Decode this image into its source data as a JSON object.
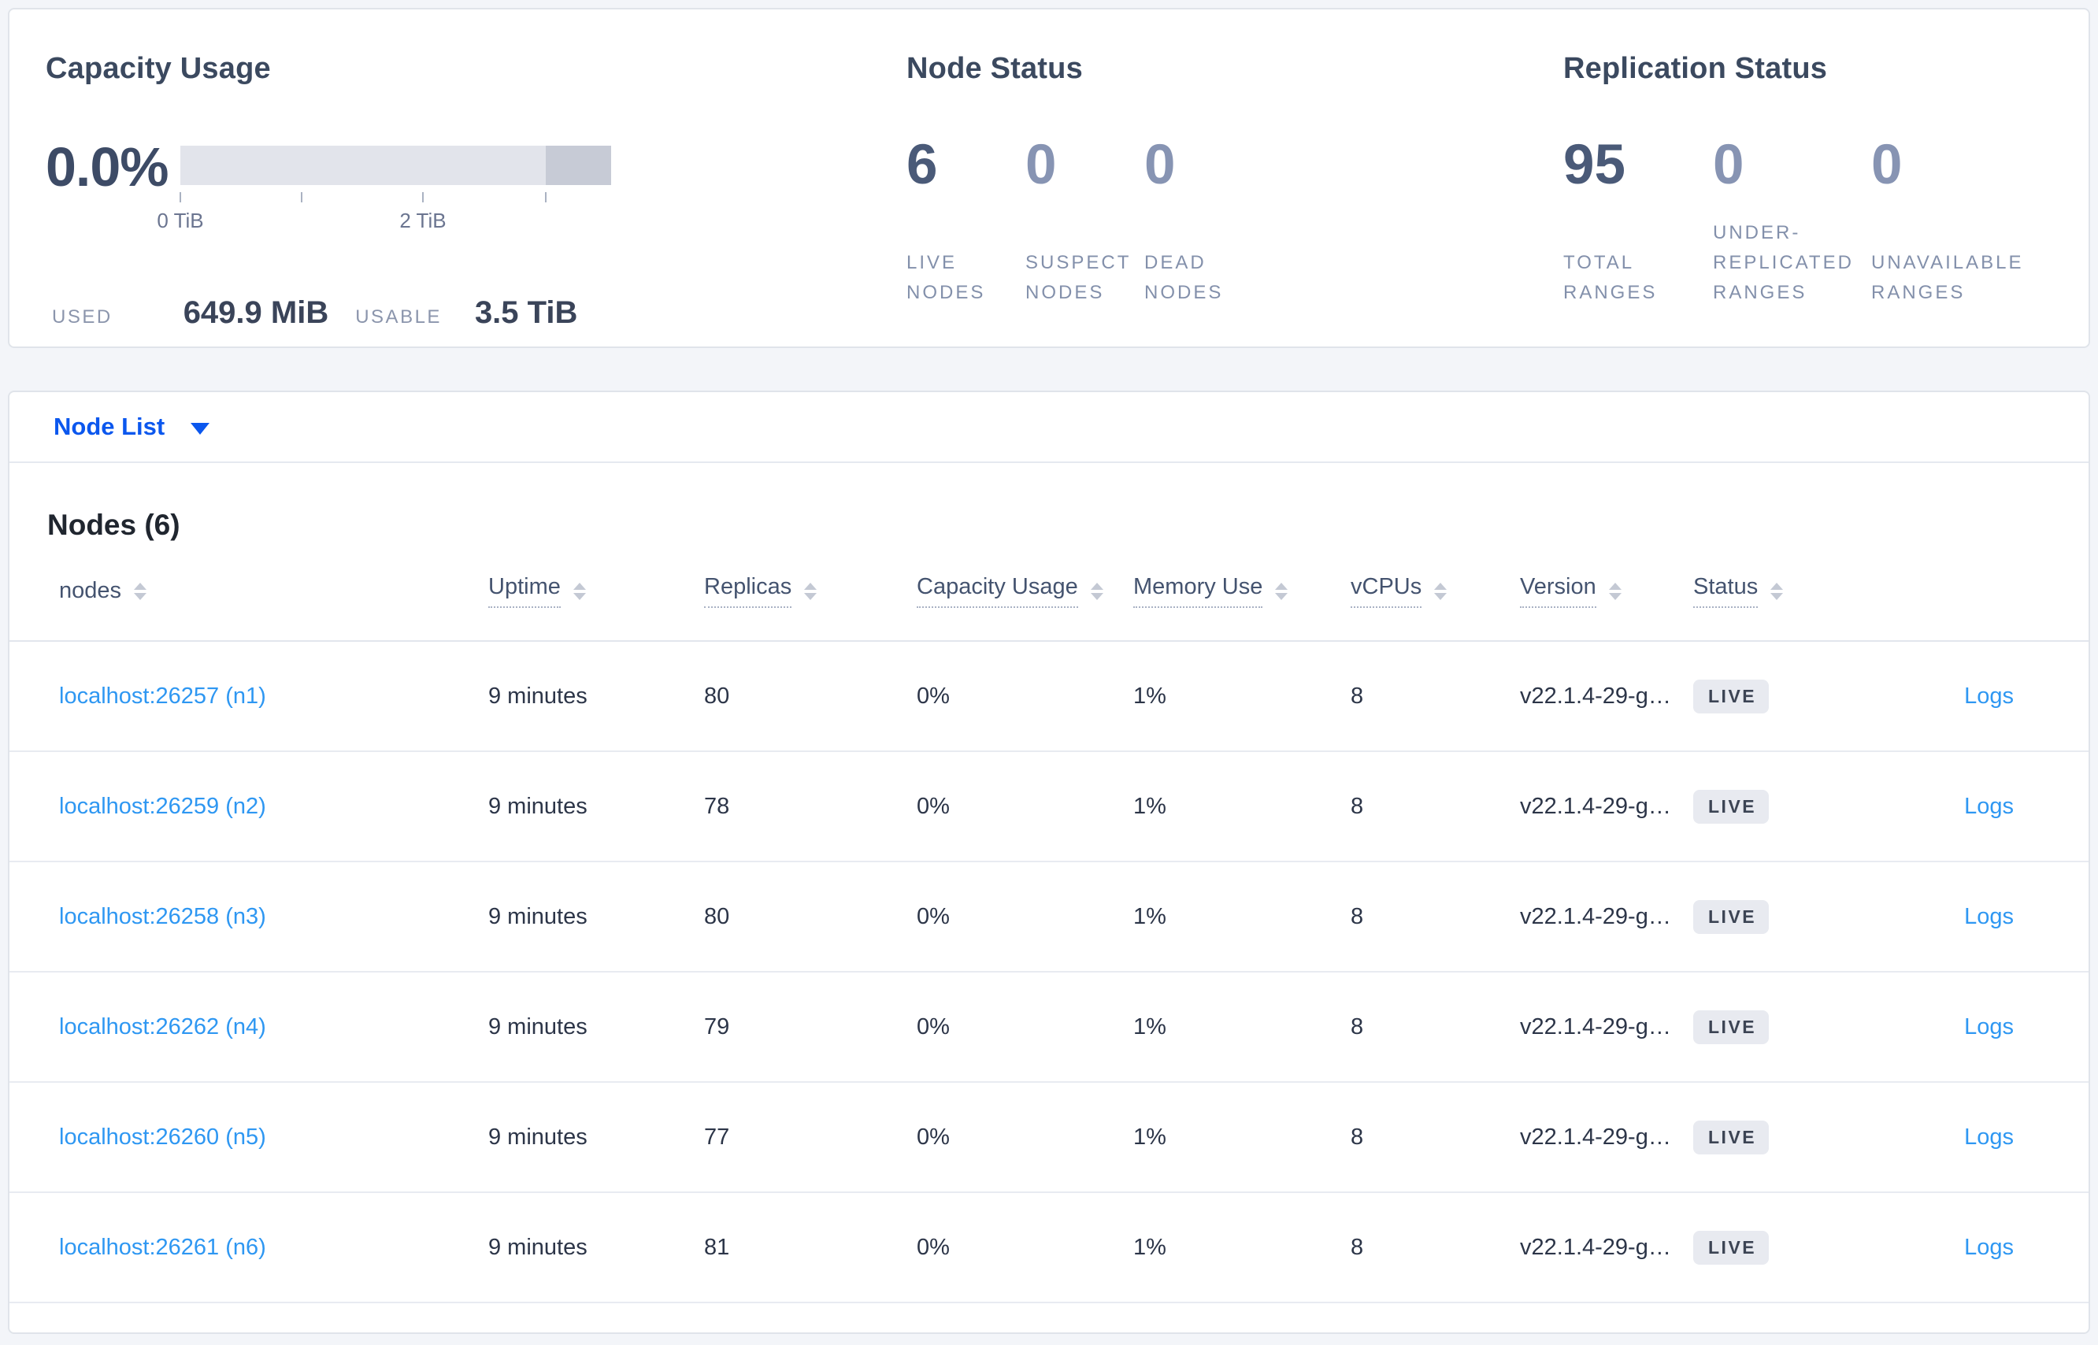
{
  "colors": {
    "page_bg": "#f3f5f9",
    "card_bg": "#ffffff",
    "card_border": "#e0e4ea",
    "section_title": "#3b495f",
    "big_number": "#4a5a78",
    "big_number_muted": "#8794b3",
    "metric_label": "#8390ab",
    "selector_blue": "#0b57ee",
    "table_link_blue": "#2e97f2",
    "cell_text": "#2c3548",
    "badge_bg": "#e8eaf0",
    "bar_track": "#e2e4eb",
    "bar_segment": "#c7cbd6"
  },
  "summary": {
    "capacity": {
      "title": "Capacity Usage",
      "percent": "0.0%",
      "bar": {
        "segment_width_pct": 15.2
      },
      "ticks": [
        {
          "pos_pct": 0,
          "label": "0 TiB"
        },
        {
          "pos_pct": 28.1,
          "label": ""
        },
        {
          "pos_pct": 56.3,
          "label": "2 TiB"
        },
        {
          "pos_pct": 84.8,
          "label": ""
        }
      ],
      "used_label": "USED",
      "used_value": "649.9 MiB",
      "usable_label": "USABLE",
      "usable_value": "3.5 TiB"
    },
    "node_status": {
      "title": "Node Status",
      "metrics": [
        {
          "value": "6",
          "label": "LIVE NODES",
          "muted": false
        },
        {
          "value": "0",
          "label": "SUSPECT NODES",
          "muted": true
        },
        {
          "value": "0",
          "label": "DEAD NODES",
          "muted": true
        }
      ]
    },
    "replication": {
      "title": "Replication Status",
      "metrics": [
        {
          "value": "95",
          "label": "TOTAL RANGES",
          "muted": false
        },
        {
          "value": "0",
          "label": "UNDER-REPLICATED RANGES",
          "muted": true
        },
        {
          "value": "0",
          "label": "UNAVAILABLE RANGES",
          "muted": true
        }
      ]
    }
  },
  "view_selector": {
    "label": "Node List"
  },
  "nodes_section": {
    "title": "Nodes (6)",
    "columns": [
      {
        "key": "nodes",
        "label": "nodes",
        "tooltip_underline": false
      },
      {
        "key": "uptime",
        "label": "Uptime",
        "tooltip_underline": true
      },
      {
        "key": "replicas",
        "label": "Replicas",
        "tooltip_underline": true
      },
      {
        "key": "capacity-usage",
        "label": "Capacity Usage",
        "tooltip_underline": true
      },
      {
        "key": "memory-use",
        "label": "Memory Use",
        "tooltip_underline": true
      },
      {
        "key": "vcpus",
        "label": "vCPUs",
        "tooltip_underline": true
      },
      {
        "key": "version",
        "label": "Version",
        "tooltip_underline": true
      },
      {
        "key": "status",
        "label": "Status",
        "tooltip_underline": true
      }
    ],
    "logs_label": "Logs",
    "rows": [
      {
        "address": "localhost:26257 (n1)",
        "uptime": "9 minutes",
        "replicas": "80",
        "capacity_usage": "0%",
        "memory_use": "1%",
        "vcpus": "8",
        "version": "v22.1.4-29-g…",
        "status": "LIVE"
      },
      {
        "address": "localhost:26259 (n2)",
        "uptime": "9 minutes",
        "replicas": "78",
        "capacity_usage": "0%",
        "memory_use": "1%",
        "vcpus": "8",
        "version": "v22.1.4-29-g…",
        "status": "LIVE"
      },
      {
        "address": "localhost:26258 (n3)",
        "uptime": "9 minutes",
        "replicas": "80",
        "capacity_usage": "0%",
        "memory_use": "1%",
        "vcpus": "8",
        "version": "v22.1.4-29-g…",
        "status": "LIVE"
      },
      {
        "address": "localhost:26262 (n4)",
        "uptime": "9 minutes",
        "replicas": "79",
        "capacity_usage": "0%",
        "memory_use": "1%",
        "vcpus": "8",
        "version": "v22.1.4-29-g…",
        "status": "LIVE"
      },
      {
        "address": "localhost:26260 (n5)",
        "uptime": "9 minutes",
        "replicas": "77",
        "capacity_usage": "0%",
        "memory_use": "1%",
        "vcpus": "8",
        "version": "v22.1.4-29-g…",
        "status": "LIVE"
      },
      {
        "address": "localhost:26261 (n6)",
        "uptime": "9 minutes",
        "replicas": "81",
        "capacity_usage": "0%",
        "memory_use": "1%",
        "vcpus": "8",
        "version": "v22.1.4-29-g…",
        "status": "LIVE"
      }
    ]
  }
}
